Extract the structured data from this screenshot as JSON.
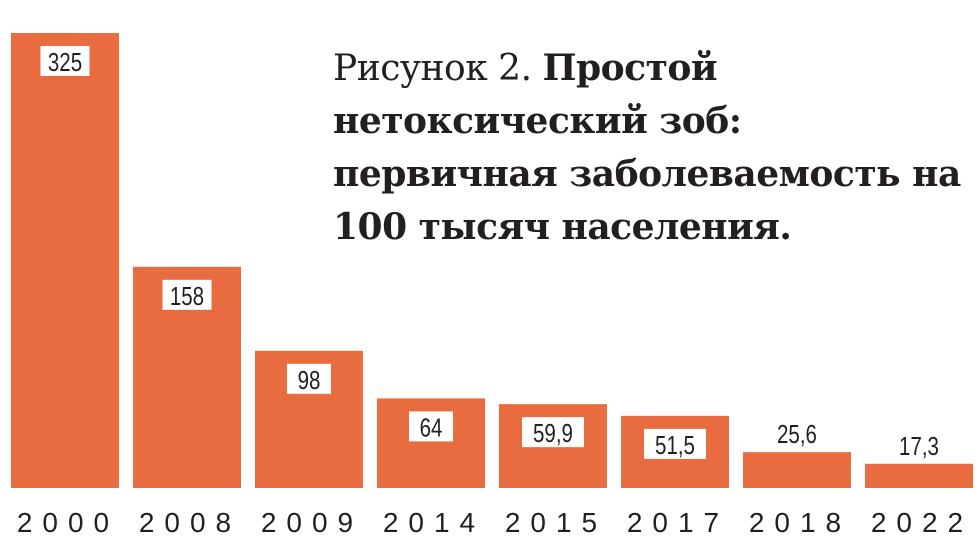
{
  "chart_data": {
    "type": "bar",
    "title_prefix": "Рисунок 2.",
    "title": "Простой нетоксический зоб: первичная заболеваемость на 100 тысяч населения.",
    "categories": [
      "2000",
      "2008",
      "2009",
      "2014",
      "2015",
      "2017",
      "2018",
      "2022"
    ],
    "values": [
      325,
      158,
      98,
      64,
      59.9,
      51.5,
      25.6,
      17.3
    ],
    "value_labels": [
      "325",
      "158",
      "98",
      "64",
      "59,9",
      "51,5",
      "25,6",
      "17,3"
    ],
    "xlabel": "",
    "ylabel": "",
    "ylim": [
      0,
      325
    ],
    "grid": false,
    "colors": {
      "bar": "#e86c3f",
      "label_box": "#ffffff",
      "text": "#231f20"
    }
  }
}
